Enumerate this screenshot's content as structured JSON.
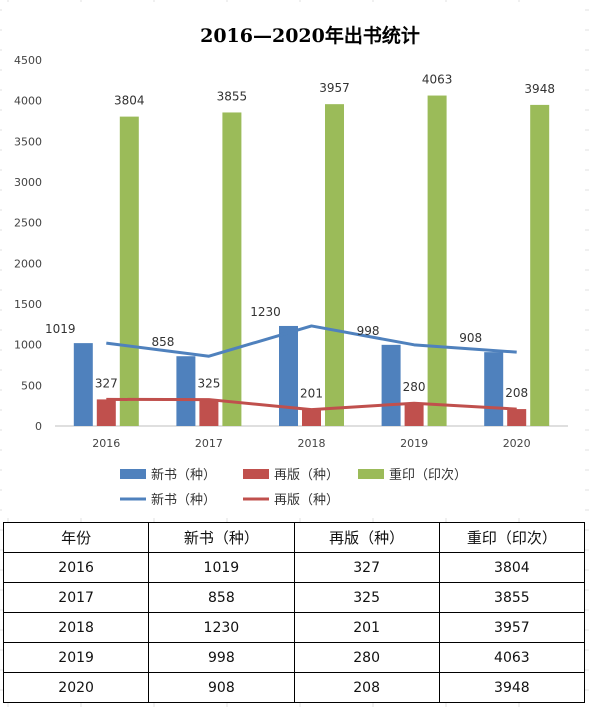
{
  "chart_data": {
    "type": "bar",
    "title": "2016—2020年出书统计",
    "categories": [
      "2016",
      "2017",
      "2018",
      "2019",
      "2020"
    ],
    "ylim": [
      0,
      4500
    ],
    "yticks": [
      "0",
      "500",
      "1000",
      "1500",
      "2000",
      "2500",
      "3000",
      "3500",
      "4000",
      "4500"
    ],
    "grid": false,
    "legend_position": "bottom",
    "series": [
      {
        "name": "新书（种）",
        "kind": "bar",
        "color": "#4F81BD",
        "values": [
          1019,
          858,
          1230,
          998,
          908
        ]
      },
      {
        "name": "再版（种）",
        "kind": "bar",
        "color": "#C0504D",
        "values": [
          327,
          325,
          201,
          280,
          208
        ]
      },
      {
        "name": "重印（印次）",
        "kind": "bar",
        "color": "#9BBB59",
        "values": [
          3804,
          3855,
          3957,
          4063,
          3948
        ]
      },
      {
        "name": "新书（种）",
        "kind": "line",
        "color": "#4F81BD",
        "values": [
          1019,
          858,
          1230,
          998,
          908
        ]
      },
      {
        "name": "再版（种）",
        "kind": "line",
        "color": "#C0504D",
        "values": [
          327,
          325,
          201,
          280,
          208
        ]
      }
    ],
    "data_labels": {
      "new": [
        "1019",
        "858",
        "1230",
        "998",
        "908"
      ],
      "reprint_edition": [
        "327",
        "325",
        "201",
        "280",
        "208"
      ],
      "reprint": [
        "3804",
        "3855",
        "3957",
        "4063",
        "3948"
      ]
    }
  },
  "table": {
    "headers": [
      "年份",
      "新书（种）",
      "再版（种）",
      "重印（印次）"
    ],
    "rows": [
      [
        "2016",
        "1019",
        "327",
        "3804"
      ],
      [
        "2017",
        "858",
        "325",
        "3855"
      ],
      [
        "2018",
        "1230",
        "201",
        "3957"
      ],
      [
        "2019",
        "998",
        "280",
        "4063"
      ],
      [
        "2020",
        "908",
        "208",
        "3948"
      ]
    ]
  }
}
